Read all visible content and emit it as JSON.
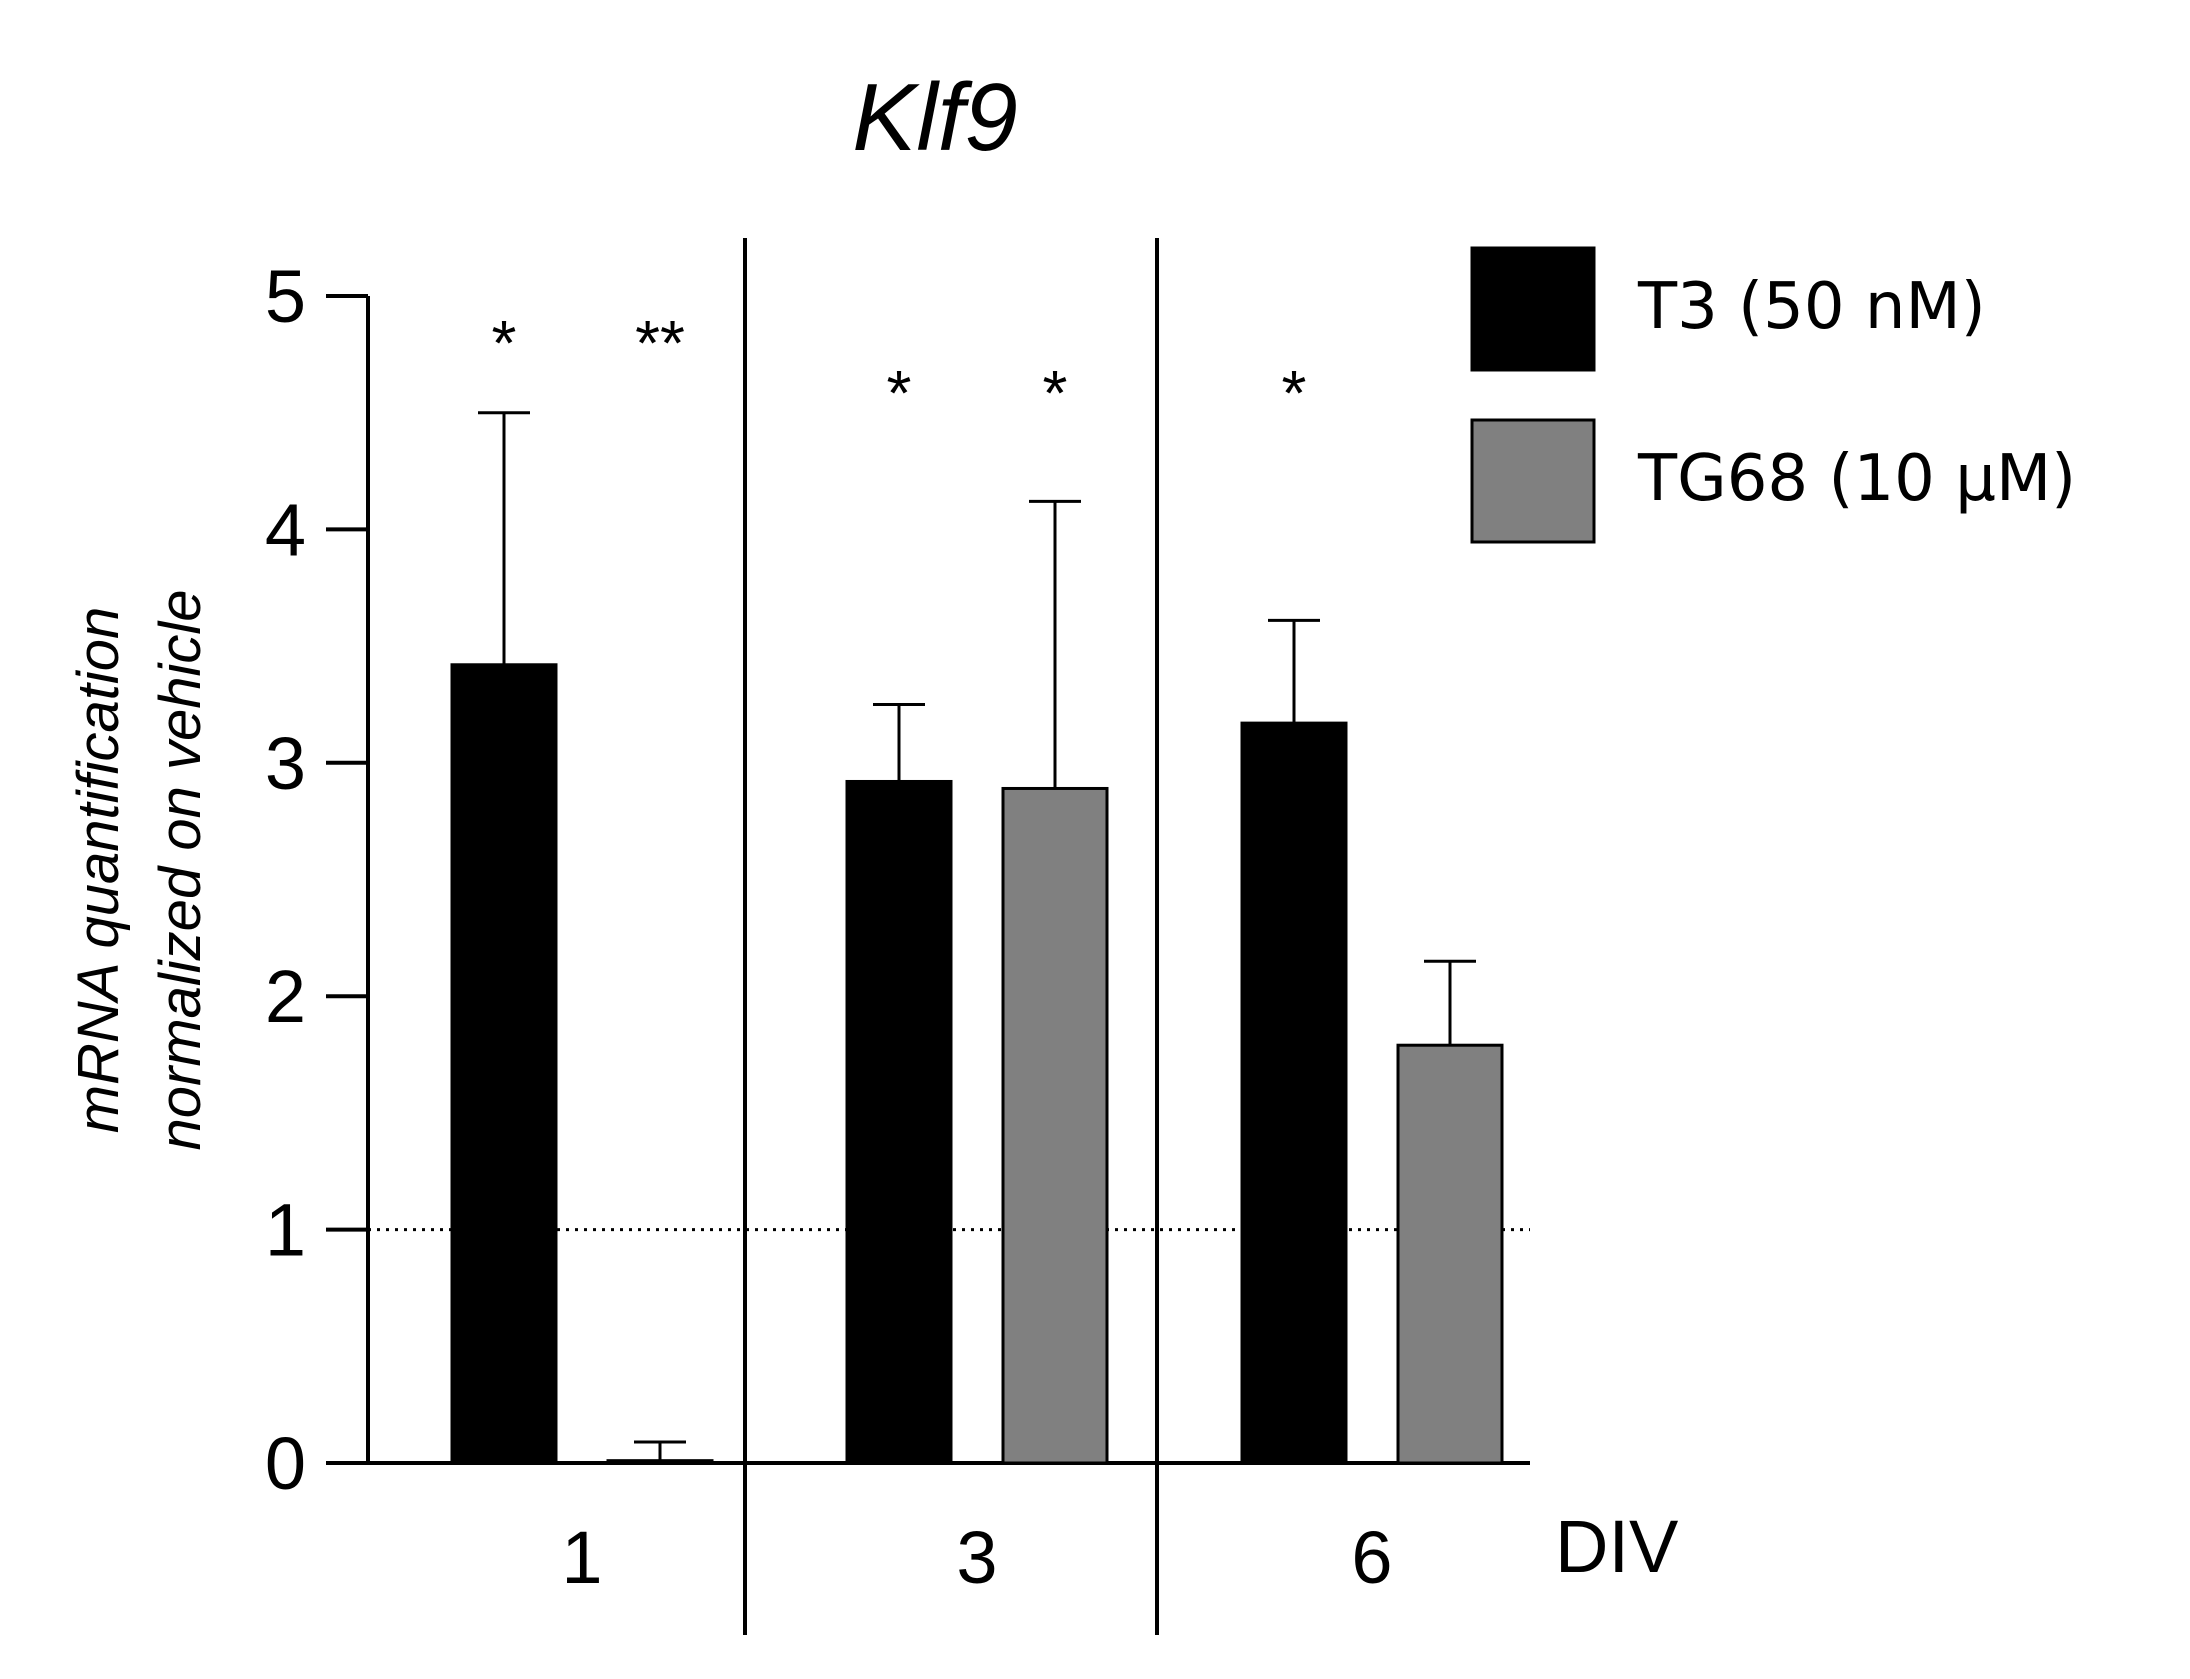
{
  "chart_data": {
    "type": "bar",
    "title": "Klf9",
    "ylabel_lines": [
      "mRNA quantification",
      "normalized on vehicle"
    ],
    "xlabel": "DIV",
    "categories": [
      "1",
      "3",
      "6"
    ],
    "ylim": [
      0,
      5
    ],
    "yticks": [
      0,
      1,
      2,
      3,
      4,
      5
    ],
    "reference_line": 1,
    "series": [
      {
        "name": "T3 (50 nM)",
        "color": "#000000",
        "values": [
          3.42,
          2.92,
          3.17
        ],
        "errors": [
          1.08,
          0.33,
          0.44
        ],
        "significance": [
          "*",
          "*",
          "*"
        ]
      },
      {
        "name": "TG68 (10 µM)",
        "color": "#808080",
        "values": [
          0.01,
          2.89,
          1.79
        ],
        "errors": [
          0.08,
          1.23,
          0.36
        ],
        "significance": [
          "**",
          "*",
          ""
        ]
      }
    ]
  }
}
